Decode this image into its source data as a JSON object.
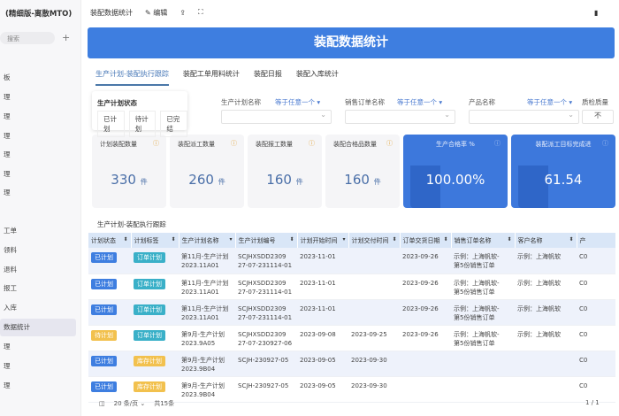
{
  "app": {
    "title": "(精细版-离散MTO)",
    "search_placeholder": "搜索",
    "add": "+"
  },
  "sidebar": {
    "items": [
      {
        "label": "板"
      },
      {
        "label": "理"
      },
      {
        "label": "理"
      },
      {
        "label": "理"
      },
      {
        "label": "理"
      },
      {
        "label": "理"
      },
      {
        "label": "理"
      },
      {
        "label": "工单"
      },
      {
        "label": "领料"
      },
      {
        "label": "退料"
      },
      {
        "label": "报工"
      },
      {
        "label": "入库"
      },
      {
        "label": "数据统计",
        "active": true
      },
      {
        "label": "理"
      },
      {
        "label": "理"
      },
      {
        "label": "理"
      }
    ]
  },
  "topbar": {
    "title": "装配数据统计",
    "edit": "编辑"
  },
  "banner": {
    "title": "装配数据统计",
    "color": "#3e7ee0"
  },
  "tabs": [
    {
      "label": "生产计划-装配执行跟踪",
      "active": true
    },
    {
      "label": "装配工单用料统计"
    },
    {
      "label": "装配日报"
    },
    {
      "label": "装配入库统计"
    }
  ],
  "status_popup": {
    "title": "生产计划状态",
    "options": [
      "已计划",
      "待计划",
      "已完结"
    ]
  },
  "filters": [
    {
      "label": "生产计划名称",
      "op": "等于任意一个"
    },
    {
      "label": "销售订单名称",
      "op": "等于任意一个"
    },
    {
      "label": "产品名称",
      "op": "等于任意一个"
    },
    {
      "label": "质检质量",
      "value": "不"
    }
  ],
  "cards": [
    {
      "label": "计划装配数量",
      "value": "330",
      "unit": "件"
    },
    {
      "label": "装配派工数量",
      "value": "260",
      "unit": "件"
    },
    {
      "label": "装配报工数量",
      "value": "160",
      "unit": "件"
    },
    {
      "label": "装配合格品数量",
      "value": "160",
      "unit": "件"
    },
    {
      "label": "生产合格率 %",
      "value": "100.00%",
      "unit": ""
    },
    {
      "label": "装配派工目标完成进",
      "value": "61.54",
      "unit": ""
    }
  ],
  "table": {
    "title": "生产计划-装配执行跟踪",
    "columns": [
      "计划状态",
      "计划标签",
      "生产计划名称",
      "生产计划编号",
      "计划开始时间",
      "计划交付时间",
      "订单交货日期",
      "销售订单名称",
      "客户名称",
      "产"
    ],
    "rows": [
      {
        "status": "已计划",
        "tag": "订单计划",
        "name": "第11月-生产计划",
        "name2": "2023.11A01",
        "code": "SCJHXSDD2309",
        "code2": "27-07-231114-01",
        "start": "2023-11-01",
        "deliver": "",
        "due": "2023-09-26",
        "so": "示例：上海帆软-",
        "so2": "第5份销售订单",
        "cust": "示例：上海帆软",
        "p": "C0"
      },
      {
        "status": "已计划",
        "tag": "订单计划",
        "name": "第11月-生产计划",
        "name2": "2023.11A01",
        "code": "SCJHXSDD2309",
        "code2": "27-07-231114-01",
        "start": "2023-11-01",
        "deliver": "",
        "due": "2023-09-26",
        "so": "示例：上海帆软-",
        "so2": "第5份销售订单",
        "cust": "示例：上海帆软",
        "p": "C0"
      },
      {
        "status": "已计划",
        "tag": "订单计划",
        "name": "第11月-生产计划",
        "name2": "2023.11A01",
        "code": "SCJHXSDD2309",
        "code2": "27-07-231114-01",
        "start": "2023-11-01",
        "deliver": "",
        "due": "2023-09-26",
        "so": "示例：上海帆软-",
        "so2": "第5份销售订单",
        "cust": "示例：上海帆软",
        "p": "C0"
      },
      {
        "status": "待计划",
        "tag": "订单计划",
        "name": "第9月-生产计划",
        "name2": "2023.9A05",
        "code": "SCJHXSDD2309",
        "code2": "27-07-230927-06",
        "start": "2023-09-08",
        "deliver": "2023-09-25",
        "due": "2023-09-26",
        "so": "示例：上海帆软-",
        "so2": "第5份销售订单",
        "cust": "示例：上海帆软",
        "p": "C0"
      },
      {
        "status": "已计划",
        "tag": "库存计划",
        "name": "第9月-生产计划",
        "name2": "2023.9B04",
        "code": "SCJH-230927-05",
        "code2": "",
        "start": "2023-09-05",
        "deliver": "2023-09-30",
        "due": "",
        "so": "",
        "so2": "",
        "cust": "",
        "p": "C0"
      },
      {
        "status": "已计划",
        "tag": "库存计划",
        "name": "第9月-生产计划",
        "name2": "2023.9B04",
        "code": "SCJH-230927-05",
        "code2": "",
        "start": "2023-09-05",
        "deliver": "2023-09-30",
        "due": "",
        "so": "",
        "so2": "",
        "cust": "",
        "p": "C0"
      }
    ]
  },
  "pagination": {
    "page_size": "20 条/页",
    "total": "共15条",
    "page": "1",
    "pages": "/ 1"
  },
  "colors": {
    "已计划": "#3e7ee0",
    "待计划": "#f2c14e",
    "订单计划": "#3ab0c8",
    "库存计划": "#f2c14e"
  }
}
